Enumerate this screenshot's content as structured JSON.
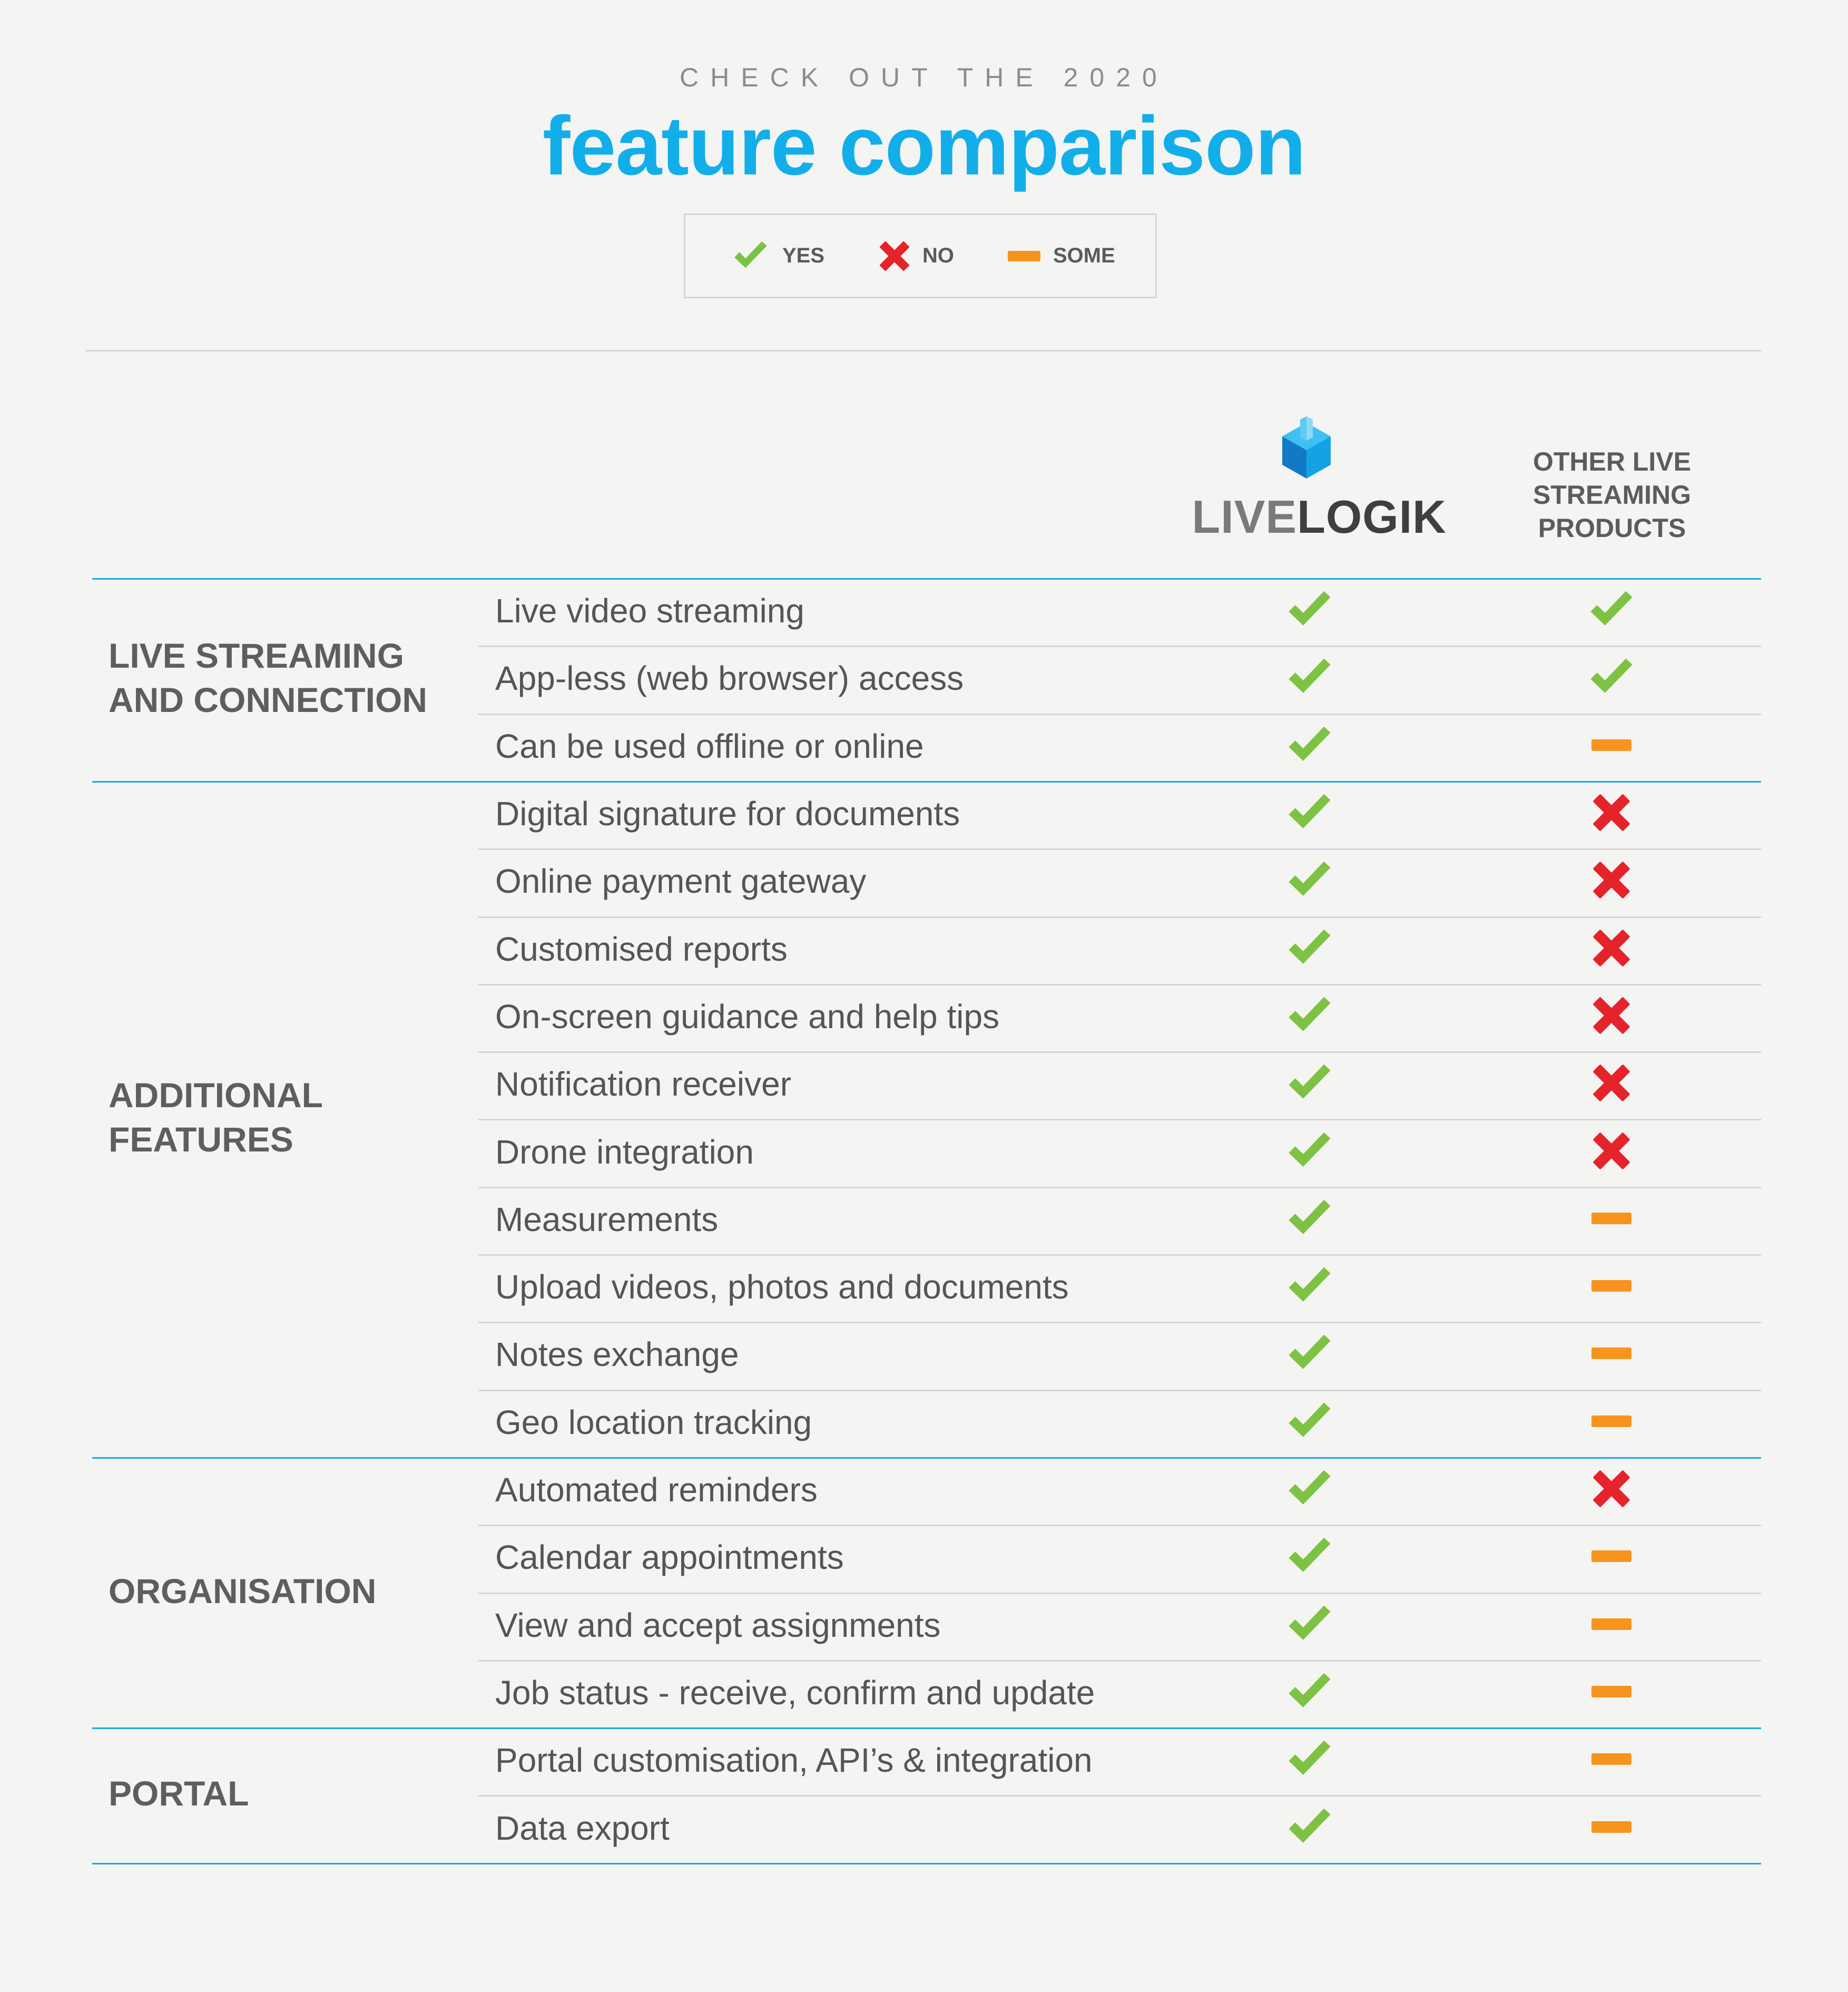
{
  "header": {
    "eyebrow": "CHECK OUT THE 2020",
    "title": "feature comparison"
  },
  "legend": {
    "yes_label": "YES",
    "no_label": "NO",
    "some_label": "SOME"
  },
  "colors": {
    "accent_blue": "#12aeea",
    "yes_green": "#7dc242",
    "no_red": "#e5232b",
    "some_orange": "#f7941d"
  },
  "columns": {
    "product_logo_part1": "LIVE",
    "product_logo_part2": "LOGIK",
    "other_line1": "OTHER LIVE",
    "other_line2": "STREAMING",
    "other_line3": "PRODUCTS"
  },
  "sections": [
    {
      "line1": "LIVE STREAMING",
      "line2": "AND CONNECTION",
      "rows": [
        {
          "feature": "Live video streaming",
          "livelogik": "yes",
          "other": "yes"
        },
        {
          "feature": "App-less (web browser) access",
          "livelogik": "yes",
          "other": "yes"
        },
        {
          "feature": "Can be used offline or online",
          "livelogik": "yes",
          "other": "some"
        }
      ]
    },
    {
      "line1": "ADDITIONAL",
      "line2": "FEATURES",
      "rows": [
        {
          "feature": "Digital signature for documents",
          "livelogik": "yes",
          "other": "no"
        },
        {
          "feature": "Online payment gateway",
          "livelogik": "yes",
          "other": "no"
        },
        {
          "feature": "Customised reports",
          "livelogik": "yes",
          "other": "no"
        },
        {
          "feature": "On-screen guidance and help tips",
          "livelogik": "yes",
          "other": "no"
        },
        {
          "feature": "Notification receiver",
          "livelogik": "yes",
          "other": "no"
        },
        {
          "feature": "Drone integration",
          "livelogik": "yes",
          "other": "no"
        },
        {
          "feature": "Measurements",
          "livelogik": "yes",
          "other": "some"
        },
        {
          "feature": "Upload videos, photos and documents",
          "livelogik": "yes",
          "other": "some"
        },
        {
          "feature": "Notes exchange",
          "livelogik": "yes",
          "other": "some"
        },
        {
          "feature": "Geo location tracking",
          "livelogik": "yes",
          "other": "some"
        }
      ]
    },
    {
      "line1": "ORGANISATION",
      "line2": "",
      "rows": [
        {
          "feature": "Automated reminders",
          "livelogik": "yes",
          "other": "no"
        },
        {
          "feature": "Calendar appointments",
          "livelogik": "yes",
          "other": "some"
        },
        {
          "feature": "View and accept assignments",
          "livelogik": "yes",
          "other": "some"
        },
        {
          "feature": "Job status - receive, confirm and update",
          "livelogik": "yes",
          "other": "some"
        }
      ]
    },
    {
      "line1": "PORTAL",
      "line2": "",
      "rows": [
        {
          "feature": "Portal customisation, API’s & integration",
          "livelogik": "yes",
          "other": "some"
        },
        {
          "feature": "Data export",
          "livelogik": "yes",
          "other": "some"
        }
      ]
    }
  ]
}
